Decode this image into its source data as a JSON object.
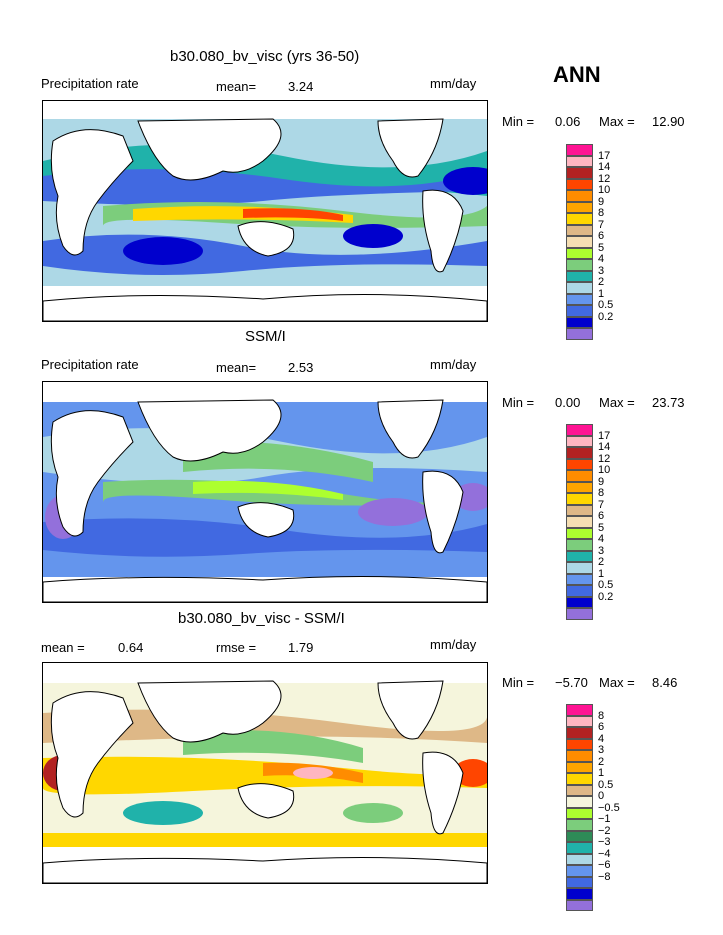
{
  "season_label": "ANN",
  "colors": {
    "abs_scale": [
      "#9370DB",
      "#0000CD",
      "#4169E1",
      "#6495ED",
      "#ADD8E6",
      "#20B2AA",
      "#7CCD7C",
      "#ADFF2F",
      "#F5DEB3",
      "#DEB887",
      "#FFD700",
      "#FFA500",
      "#FF8C00",
      "#FF4500",
      "#B22222",
      "#FFB6C1",
      "#FF1493"
    ],
    "diff_scale": [
      "#9370DB",
      "#0000CD",
      "#4169E1",
      "#6495ED",
      "#ADD8E6",
      "#20B2AA",
      "#2E8B57",
      "#7CCD7C",
      "#ADFF2F",
      "#F5F5DC",
      "#DEB887",
      "#FFD700",
      "#FFA500",
      "#FF8C00",
      "#FF4500",
      "#B22222",
      "#FFB6C1",
      "#FF1493"
    ]
  },
  "panels": [
    {
      "title": "b30.080_bv_visc (yrs 36-50)",
      "left_label": "Precipitation rate",
      "mid_label": "mean=",
      "mid_value": "3.24",
      "unit": "mm/day",
      "min_label": "Min =",
      "min_value": "0.06",
      "max_label": "Max =",
      "max_value": "12.90",
      "ticks": [
        "17",
        "14",
        "12",
        "10",
        "9",
        "8",
        "7",
        "6",
        "5",
        "4",
        "3",
        "2",
        "1",
        "0.5",
        "0.2"
      ]
    },
    {
      "title": "SSM/I",
      "left_label": "Precipitation rate",
      "mid_label": "mean=",
      "mid_value": "2.53",
      "unit": "mm/day",
      "min_label": "Min =",
      "min_value": "0.00",
      "max_label": "Max =",
      "max_value": "23.73",
      "ticks": [
        "17",
        "14",
        "12",
        "10",
        "9",
        "8",
        "7",
        "6",
        "5",
        "4",
        "3",
        "2",
        "1",
        "0.5",
        "0.2"
      ]
    },
    {
      "title": "b30.080_bv_visc - SSM/I",
      "left_label": "mean =",
      "left_value": "0.64",
      "mid_label": "rmse =",
      "mid_value": "1.79",
      "unit": "mm/day",
      "min_label": "Min =",
      "min_value": "−5.70",
      "max_label": "Max =",
      "max_value": "8.46",
      "ticks": [
        "8",
        "6",
        "4",
        "3",
        "2",
        "1",
        "0.5",
        "0",
        "−0.5",
        "−1",
        "−2",
        "−3",
        "−4",
        "−6",
        "−8"
      ]
    }
  ]
}
